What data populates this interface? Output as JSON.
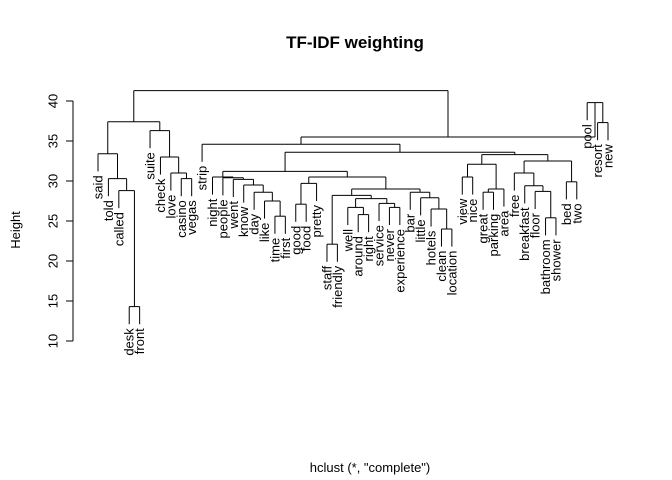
{
  "chart_data": {
    "type": "dendrogram",
    "title": "TF-IDF weighting",
    "xlabel": "hclust (*, \"complete\")",
    "ylabel": "Height",
    "ylim": [
      10,
      42
    ],
    "y_ticks": [
      10,
      15,
      20,
      25,
      30,
      35,
      40
    ],
    "leaves": [
      "said",
      "told",
      "called",
      "desk",
      "front",
      "suite",
      "check",
      "love",
      "casino",
      "vegas",
      "strip",
      "night",
      "people",
      "went",
      "know",
      "day",
      "like",
      "time",
      "first",
      "good",
      "food",
      "pretty",
      "staff",
      "friendly",
      "well",
      "around",
      "right",
      "service",
      "never",
      "experience",
      "bar",
      "little",
      "hotels",
      "clean",
      "location",
      "view",
      "nice",
      "great",
      "parking",
      "area",
      "free",
      "breakfast",
      "floor",
      "bathroom",
      "shower",
      "bed",
      "two",
      "pool",
      "resort",
      "new"
    ],
    "merges": [
      {
        "id": "m_df",
        "left": "desk",
        "right": "front",
        "height": 14.3
      },
      {
        "id": "m_called",
        "left": "called",
        "right": "m_df",
        "height": 28.8
      },
      {
        "id": "m_told",
        "left": "told",
        "right": "m_called",
        "height": 30.3
      },
      {
        "id": "m_said",
        "left": "said",
        "right": "m_told",
        "height": 33.4
      },
      {
        "id": "m_casvegas",
        "left": "casino",
        "right": "vegas",
        "height": 30.3
      },
      {
        "id": "m_cv2",
        "left": "love",
        "right": "m_casvegas",
        "height": 31.0
      },
      {
        "id": "m_cv3",
        "left": "check",
        "right": "m_cv2",
        "height": 33.0
      },
      {
        "id": "m_leftA",
        "left": "suite",
        "right": "m_cv3",
        "height": 36.3
      },
      {
        "id": "m_left",
        "left": "m_said",
        "right": "m_leftA",
        "height": 37.4
      },
      {
        "id": "m_timefirst",
        "left": "time",
        "right": "first",
        "height": 25.6
      },
      {
        "id": "m_like",
        "left": "like",
        "right": "m_timefirst",
        "height": 27.5
      },
      {
        "id": "m_day",
        "left": "day",
        "right": "m_like",
        "height": 28.6
      },
      {
        "id": "m_know",
        "left": "know",
        "right": "m_day",
        "height": 29.5
      },
      {
        "id": "m_went",
        "left": "went",
        "right": "m_know",
        "height": 30.2
      },
      {
        "id": "m_people",
        "left": "people",
        "right": "m_went",
        "height": 30.4
      },
      {
        "id": "m_night",
        "left": "night",
        "right": "m_people",
        "height": 30.5
      },
      {
        "id": "m_goodfood",
        "left": "good",
        "right": "food",
        "height": 27.1
      },
      {
        "id": "m_pretty",
        "left": "m_goodfood",
        "right": "pretty",
        "height": 29.7
      },
      {
        "id": "m_staff",
        "left": "staff",
        "right": "friendly",
        "height": 22.1
      },
      {
        "id": "m_aroundright",
        "left": "around",
        "right": "right",
        "height": 25.8
      },
      {
        "id": "m_well",
        "left": "well",
        "right": "m_aroundright",
        "height": 26.7
      },
      {
        "id": "m_neverexp",
        "left": "never",
        "right": "experience",
        "height": 26.7
      },
      {
        "id": "m_service",
        "left": "service",
        "right": "m_neverexp",
        "height": 27.2
      },
      {
        "id": "m_wellserv",
        "left": "m_well",
        "right": "m_service",
        "height": 27.8
      },
      {
        "id": "m_staffw",
        "left": "m_staff",
        "right": "m_wellserv",
        "height": 28.2
      },
      {
        "id": "m_cleanloc",
        "left": "clean",
        "right": "location",
        "height": 24.0
      },
      {
        "id": "m_hotels",
        "left": "hotels",
        "right": "m_cleanloc",
        "height": 26.5
      },
      {
        "id": "m_little",
        "left": "little",
        "right": "m_hotels",
        "height": 27.9
      },
      {
        "id": "m_bar",
        "left": "bar",
        "right": "m_little",
        "height": 28.6
      },
      {
        "id": "m_mid1",
        "left": "m_staffw",
        "right": "m_bar",
        "height": 29.0
      },
      {
        "id": "m_mid2",
        "left": "m_pretty",
        "right": "m_mid1",
        "height": 30.5
      },
      {
        "id": "m_midA",
        "left": "m_night",
        "right": "m_mid2",
        "height": 31.2
      },
      {
        "id": "m_vl",
        "left": "view",
        "right": "nice",
        "height": 30.5
      },
      {
        "id": "m_great",
        "left": "great",
        "right": "parking",
        "height": 28.6
      },
      {
        "id": "m_area",
        "left": "area",
        "right": "m_great",
        "height": 29.0
      },
      {
        "id": "m_vl2",
        "left": "m_vl",
        "right": "m_area",
        "height": 32.1
      },
      {
        "id": "m_bathshow",
        "left": "bathroom",
        "right": "shower",
        "height": 25.4
      },
      {
        "id": "m_floor",
        "left": "floor",
        "right": "m_bathshow",
        "height": 28.7
      },
      {
        "id": "m_breakfast",
        "left": "breakfast",
        "right": "m_floor",
        "height": 29.4
      },
      {
        "id": "m_bedtwo",
        "left": "bed",
        "right": "two",
        "height": 29.9
      },
      {
        "id": "m_free",
        "left": "free",
        "right": "m_breakfast",
        "height": 31.0
      },
      {
        "id": "m_fb",
        "left": "m_free",
        "right": "m_bedtwo",
        "height": 32.5
      },
      {
        "id": "m_right2",
        "left": "m_vl2",
        "right": "m_fb",
        "height": 33.3
      },
      {
        "id": "m_mid3",
        "left": "m_midA",
        "right": "m_right2",
        "height": 33.6
      },
      {
        "id": "m_strip",
        "left": "strip",
        "right": "m_mid3",
        "height": 34.6
      },
      {
        "id": "m_resnew",
        "left": "resort",
        "right": "new",
        "height": 37.3
      },
      {
        "id": "m_pool",
        "left": "pool",
        "right": "m_resnew",
        "height": 39.8
      },
      {
        "id": "m_rightAll",
        "left": "m_strip",
        "right": "m_pool",
        "height": 35.5
      },
      {
        "id": "m_root",
        "left": "m_left",
        "right": "m_rightAll",
        "height": 41.3
      }
    ]
  }
}
